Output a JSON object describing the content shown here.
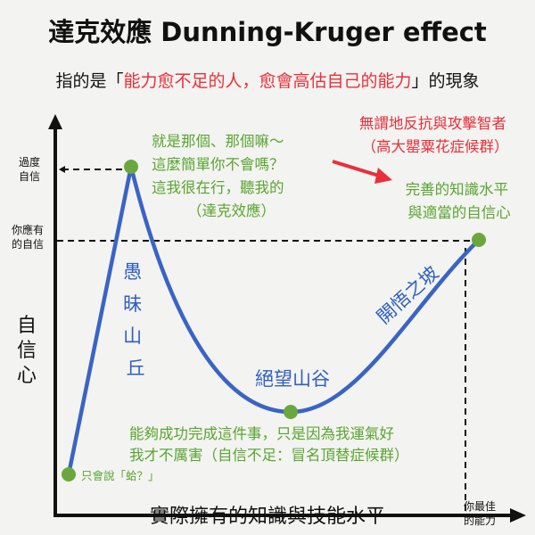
{
  "title": "達克效應 Dunning-Kruger effect",
  "subtitle": {
    "prefix": "指的是「",
    "highlight": "能力愈不足的人，愈會高估自己的能力",
    "suffix": "」的現象"
  },
  "y_axis": {
    "label": [
      "自",
      "信",
      "心"
    ],
    "tick_over": [
      "過度",
      "自信"
    ],
    "tick_proper": [
      "你應有",
      "的自信"
    ]
  },
  "x_axis": {
    "label": "實際擁有的知識與技能水平",
    "tick_best": [
      "你最佳",
      "的能力"
    ]
  },
  "annotations": {
    "peak": [
      "就是那個、那個嘛～",
      "這麼簡單你不會嗎？",
      "這我很在行，聽我的",
      "（達克效應）"
    ],
    "plateau": [
      "完善的知識水平",
      "與適當的自信心"
    ],
    "red_note": [
      "無謂地反抗與攻擊智者",
      "（高大罌粟花症候群）"
    ],
    "valley": [
      "能夠成功完成這件事，只是因為我運氣好",
      "我才不厲害（自信不足：冒名頂替症候群）"
    ],
    "start": "只會說「蛤？」"
  },
  "regions": {
    "mount": [
      "愚",
      "昧",
      "山",
      "丘"
    ],
    "valley": "絕望山谷",
    "slope": "開悟之坡"
  },
  "colors": {
    "curve": "#3a64c4",
    "point": "#6aa83e",
    "note": "#5aa532",
    "warning": "#e8303a"
  }
}
